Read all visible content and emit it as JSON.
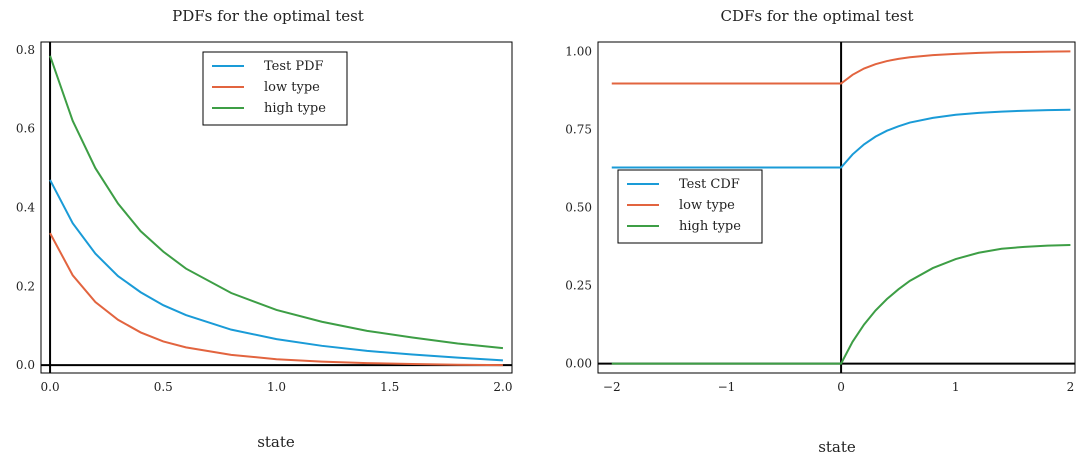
{
  "chart_data": [
    {
      "type": "line",
      "title": "PDFs for the optimal test",
      "xlabel": "state",
      "ylabel": "",
      "xlim": [
        -0.04,
        2.04
      ],
      "ylim": [
        -0.02,
        0.82
      ],
      "xticks": [
        0.0,
        0.5,
        1.0,
        1.5,
        2.0
      ],
      "xtick_labels": [
        "0.0",
        "0.5",
        "1.0",
        "1.5",
        "2.0"
      ],
      "yticks": [
        0.0,
        0.2,
        0.4,
        0.6,
        0.8
      ],
      "ytick_labels": [
        "0.0",
        "0.2",
        "0.4",
        "0.6",
        "0.8"
      ],
      "grid": false,
      "legend_position": "top-center",
      "series": [
        {
          "name": "Test PDF",
          "color": "#1a9bd7",
          "x": [
            0,
            0.1,
            0.2,
            0.3,
            0.4,
            0.5,
            0.6,
            0.8,
            1.0,
            1.2,
            1.4,
            1.6,
            1.8,
            2.0
          ],
          "y": [
            0.47,
            0.36,
            0.283,
            0.226,
            0.185,
            0.152,
            0.127,
            0.09,
            0.066,
            0.049,
            0.036,
            0.027,
            0.019,
            0.012
          ]
        },
        {
          "name": "low type",
          "color": "#e2643f",
          "x": [
            0,
            0.1,
            0.2,
            0.3,
            0.4,
            0.5,
            0.6,
            0.8,
            1.0,
            1.2,
            1.4,
            1.6,
            1.8,
            2.0
          ],
          "y": [
            0.335,
            0.228,
            0.16,
            0.115,
            0.083,
            0.06,
            0.045,
            0.026,
            0.015,
            0.009,
            0.005,
            0.003,
            0.001,
            0.0
          ]
        },
        {
          "name": "high type",
          "color": "#3d9e45",
          "x": [
            0,
            0.1,
            0.2,
            0.3,
            0.4,
            0.5,
            0.6,
            0.8,
            1.0,
            1.2,
            1.4,
            1.6,
            1.8,
            2.0
          ],
          "y": [
            0.785,
            0.62,
            0.5,
            0.41,
            0.34,
            0.288,
            0.245,
            0.183,
            0.14,
            0.11,
            0.087,
            0.07,
            0.055,
            0.043
          ]
        }
      ]
    },
    {
      "type": "line",
      "title": "CDFs for the optimal test",
      "xlabel": "state",
      "ylabel": "",
      "xlim": [
        -2.12,
        2.04
      ],
      "ylim": [
        -0.03,
        1.03
      ],
      "xticks": [
        -2,
        -1,
        0,
        1,
        2
      ],
      "xtick_labels": [
        "−2",
        "−1",
        "0",
        "1",
        "2"
      ],
      "yticks": [
        0.0,
        0.25,
        0.5,
        0.75,
        1.0
      ],
      "ytick_labels": [
        "0.00",
        "0.25",
        "0.50",
        "0.75",
        "1.00"
      ],
      "grid": false,
      "legend_position": "center-left",
      "series": [
        {
          "name": "Test CDF",
          "color": "#1a9bd7",
          "x": [
            -2,
            0,
            0.1,
            0.2,
            0.3,
            0.4,
            0.5,
            0.6,
            0.8,
            1.0,
            1.2,
            1.4,
            1.6,
            1.8,
            2.0
          ],
          "y": [
            0.628,
            0.628,
            0.67,
            0.702,
            0.727,
            0.746,
            0.76,
            0.772,
            0.787,
            0.797,
            0.803,
            0.807,
            0.81,
            0.812,
            0.813
          ]
        },
        {
          "name": "low type",
          "color": "#e2643f",
          "x": [
            -2,
            0,
            0.1,
            0.2,
            0.3,
            0.4,
            0.5,
            0.6,
            0.8,
            1.0,
            1.2,
            1.4,
            1.6,
            1.8,
            2.0
          ],
          "y": [
            0.897,
            0.897,
            0.925,
            0.945,
            0.959,
            0.969,
            0.976,
            0.981,
            0.988,
            0.992,
            0.995,
            0.997,
            0.998,
            0.999,
            1.0
          ]
        },
        {
          "name": "high type",
          "color": "#3d9e45",
          "x": [
            -2,
            0,
            0.1,
            0.2,
            0.3,
            0.4,
            0.5,
            0.6,
            0.8,
            1.0,
            1.2,
            1.4,
            1.6,
            1.8,
            2.0
          ],
          "y": [
            0.0,
            0.0,
            0.07,
            0.125,
            0.17,
            0.207,
            0.238,
            0.265,
            0.306,
            0.335,
            0.355,
            0.368,
            0.374,
            0.378,
            0.38
          ]
        }
      ]
    }
  ]
}
